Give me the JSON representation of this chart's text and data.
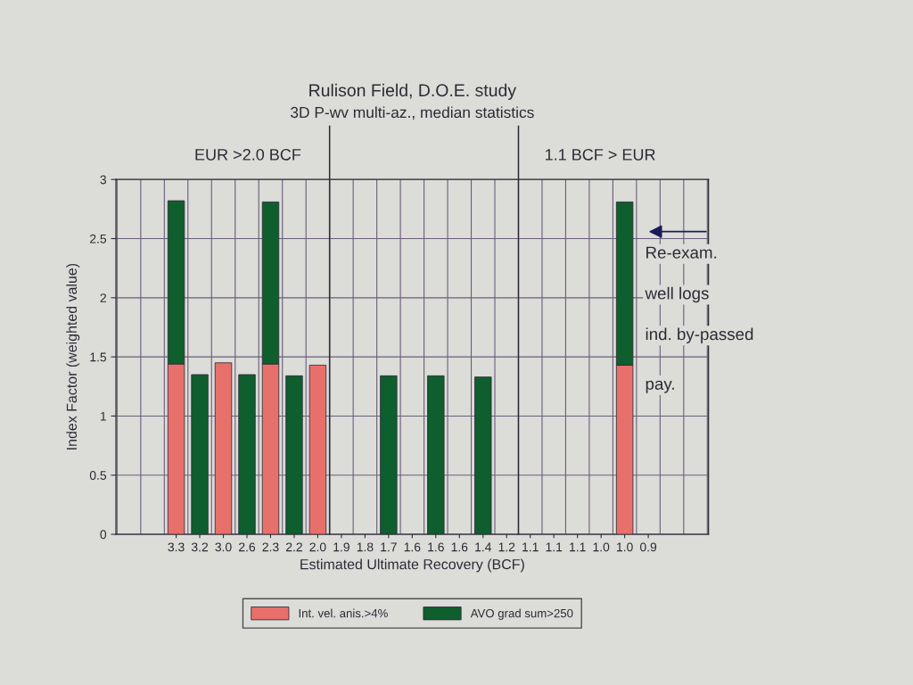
{
  "chart_data": {
    "type": "bar",
    "title": "Rulison Field, D.O.E. study",
    "subtitle": "3D P-wv multi-az., median statistics",
    "xlabel": "Estimated Ultimate Recovery (BCF)",
    "ylabel": "Index Factor (weighted value)",
    "categories": [
      "3.3",
      "3.2",
      "3.0",
      "2.6",
      "2.3",
      "2.2",
      "2.0",
      "1.9",
      "1.8",
      "1.7",
      "1.6",
      "1.6",
      "1.6",
      "1.4",
      "1.2",
      "1.1",
      "1.1",
      "1.1",
      "1.0",
      "1.0",
      "0.9"
    ],
    "stacked": true,
    "series": [
      {
        "name": "Int. vel. anis.>4%",
        "color": "#e8706a",
        "values": [
          1.44,
          null,
          1.45,
          null,
          1.44,
          null,
          1.43,
          null,
          null,
          null,
          null,
          null,
          null,
          null,
          null,
          null,
          null,
          null,
          null,
          1.43,
          null
        ]
      },
      {
        "name": "AVO grad sum>250",
        "color": "#0f5e2e",
        "values": [
          1.38,
          1.35,
          null,
          1.35,
          1.37,
          1.34,
          null,
          null,
          null,
          1.34,
          null,
          1.34,
          null,
          1.33,
          null,
          null,
          null,
          null,
          null,
          1.38,
          null
        ]
      }
    ],
    "ylim": [
      0,
      3
    ],
    "yticks": [
      0,
      0.5,
      1,
      1.5,
      2,
      2.5,
      3
    ],
    "grid": true,
    "legend": "bottom",
    "annotations": [
      "EUR >2.0 BCF",
      "1.1 BCF > EUR",
      "Re-exam.\nwell logs\nind. by-passed\npay."
    ]
  }
}
